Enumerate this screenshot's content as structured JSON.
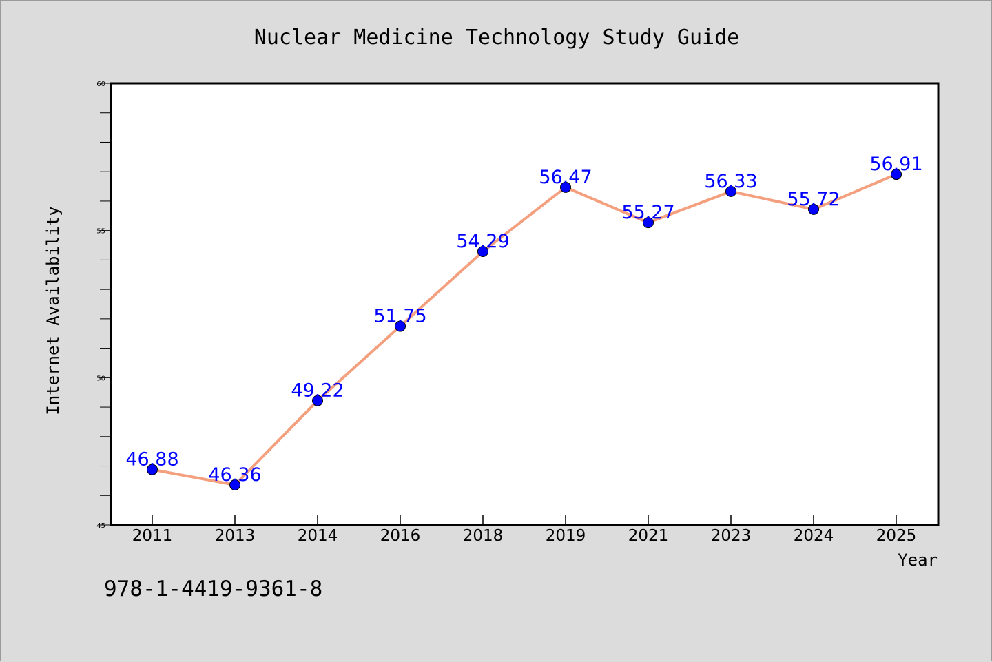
{
  "chart_data": {
    "type": "line",
    "title": "Nuclear Medicine Technology Study Guide",
    "xlabel": "Year",
    "ylabel": "Internet Availability",
    "categories": [
      "2011",
      "2013",
      "2014",
      "2016",
      "2018",
      "2019",
      "2021",
      "2023",
      "2024",
      "2025"
    ],
    "series": [
      {
        "values": [
          46.88,
          46.36,
          49.22,
          51.75,
          54.29,
          56.47,
          55.27,
          56.33,
          55.72,
          56.91
        ],
        "labels": [
          "46.88",
          "46.36",
          "49.22",
          "51.75",
          "54.29",
          "56.47",
          "55.27",
          "56.33",
          "55.72",
          "56.91"
        ]
      }
    ],
    "ylim": [
      45,
      60
    ],
    "yticks": [
      "45",
      "50",
      "55",
      "60"
    ],
    "grid": false,
    "colors": {
      "line": "#f4a07f",
      "marker": "#0000ff",
      "label": "#0000ff",
      "background": "#dcdcdc",
      "plot_area": "#ffffff"
    }
  },
  "annotation": {
    "isbn": "978-1-4419-9361-8"
  }
}
